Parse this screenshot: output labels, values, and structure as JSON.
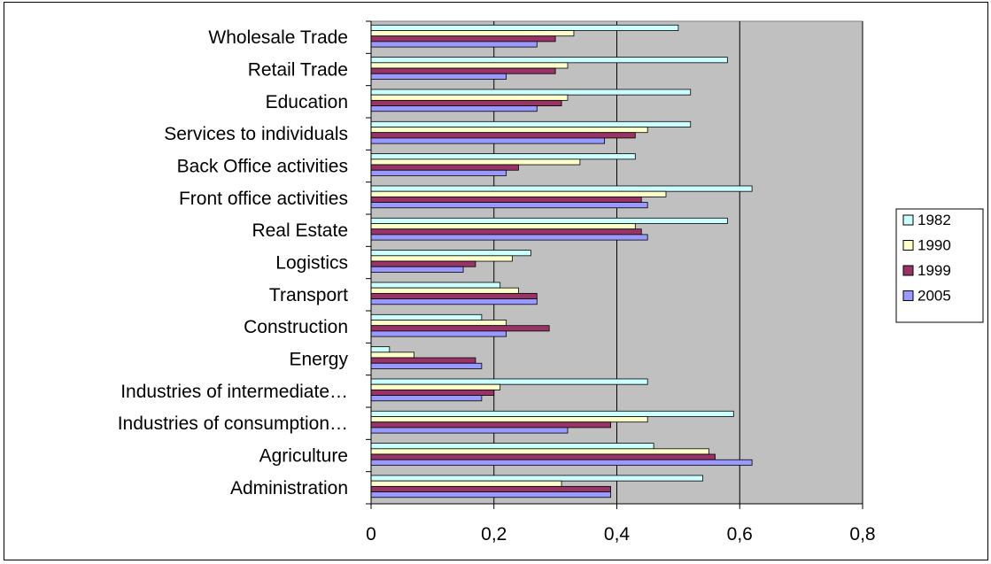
{
  "chart_data": {
    "type": "bar",
    "orientation": "horizontal",
    "title": "",
    "xlabel": "",
    "ylabel": "",
    "categories": [
      "Wholesale Trade",
      "Retail Trade",
      "Education",
      "Services to individuals",
      "Back Office activities",
      "Front office activities",
      "Real Estate",
      "Logistics",
      "Transport",
      "Construction",
      "Energy",
      "Industries of intermediate…",
      "Industries of consumption…",
      "Agriculture",
      "Administration"
    ],
    "series": [
      {
        "name": "1982",
        "color": "#ccffff",
        "values": [
          0.5,
          0.58,
          0.52,
          0.52,
          0.43,
          0.62,
          0.58,
          0.26,
          0.21,
          0.18,
          0.03,
          0.45,
          0.59,
          0.46,
          0.54
        ]
      },
      {
        "name": "1990",
        "color": "#ffffcc",
        "values": [
          0.33,
          0.32,
          0.32,
          0.45,
          0.34,
          0.48,
          0.43,
          0.23,
          0.24,
          0.22,
          0.07,
          0.21,
          0.45,
          0.55,
          0.31
        ]
      },
      {
        "name": "1999",
        "color": "#993366",
        "values": [
          0.3,
          0.3,
          0.31,
          0.43,
          0.24,
          0.44,
          0.44,
          0.17,
          0.27,
          0.29,
          0.17,
          0.2,
          0.39,
          0.56,
          0.39
        ]
      },
      {
        "name": "2005",
        "color": "#9999ff",
        "values": [
          0.27,
          0.22,
          0.27,
          0.38,
          0.22,
          0.45,
          0.45,
          0.15,
          0.27,
          0.22,
          0.18,
          0.18,
          0.32,
          0.62,
          0.39
        ]
      }
    ],
    "xlim": [
      0,
      0.8
    ],
    "xticks": [
      0,
      0.2,
      0.4,
      0.6,
      0.8
    ],
    "xtick_labels": [
      "0",
      "0,2",
      "0,4",
      "0,6",
      "0,8"
    ],
    "plot_background": "#c0c0c0",
    "grid": "vertical major gridlines",
    "legend_position": "right"
  }
}
